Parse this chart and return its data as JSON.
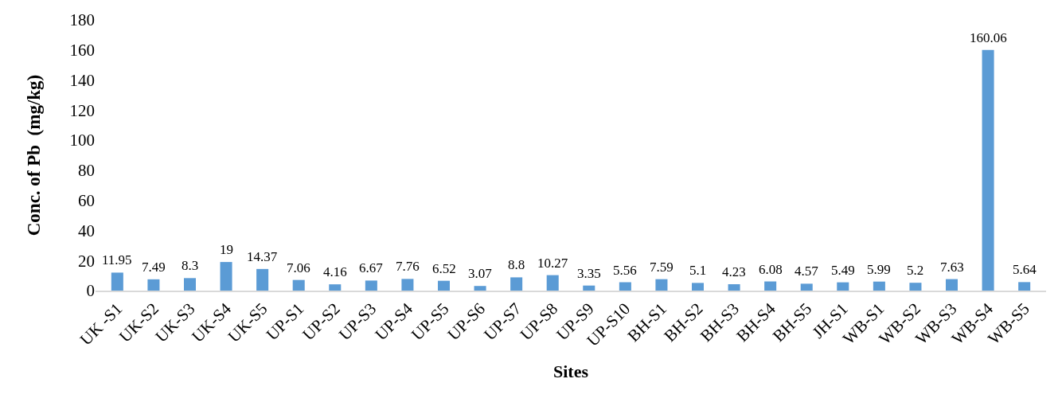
{
  "chart_data": {
    "type": "bar",
    "xlabel": "Sites",
    "ylabel": "Conc. of Pb  (mg/kg)",
    "categories": [
      "UK -S1",
      "UK-S2",
      "UK-S3",
      "UK-S4",
      "UK-S5",
      "UP-S1",
      "UP-S2",
      "UP-S3",
      "UP-S4",
      "UP-S5",
      "UP-S6",
      "UP-S7",
      "UP-S8",
      "UP-S9",
      "UP-S10",
      "BH-S1",
      "BH-S2",
      "BH-S3",
      "BH-S4",
      "BH-S5",
      "JH-S1",
      "WB-S1",
      "WB-S2",
      "WB-S3",
      "WB-S4",
      "WB-S5"
    ],
    "values": [
      11.95,
      7.49,
      8.3,
      19,
      14.37,
      7.06,
      4.16,
      6.67,
      7.76,
      6.52,
      3.07,
      8.8,
      10.27,
      3.35,
      5.56,
      7.59,
      5.1,
      4.23,
      6.08,
      4.57,
      5.49,
      5.99,
      5.2,
      7.63,
      160.06,
      5.64
    ],
    "color": "#5b9bd5",
    "ylim": [
      0,
      180
    ],
    "yticks": [
      0,
      20,
      40,
      60,
      80,
      100,
      120,
      140,
      160,
      180
    ],
    "data_labels": true
  }
}
